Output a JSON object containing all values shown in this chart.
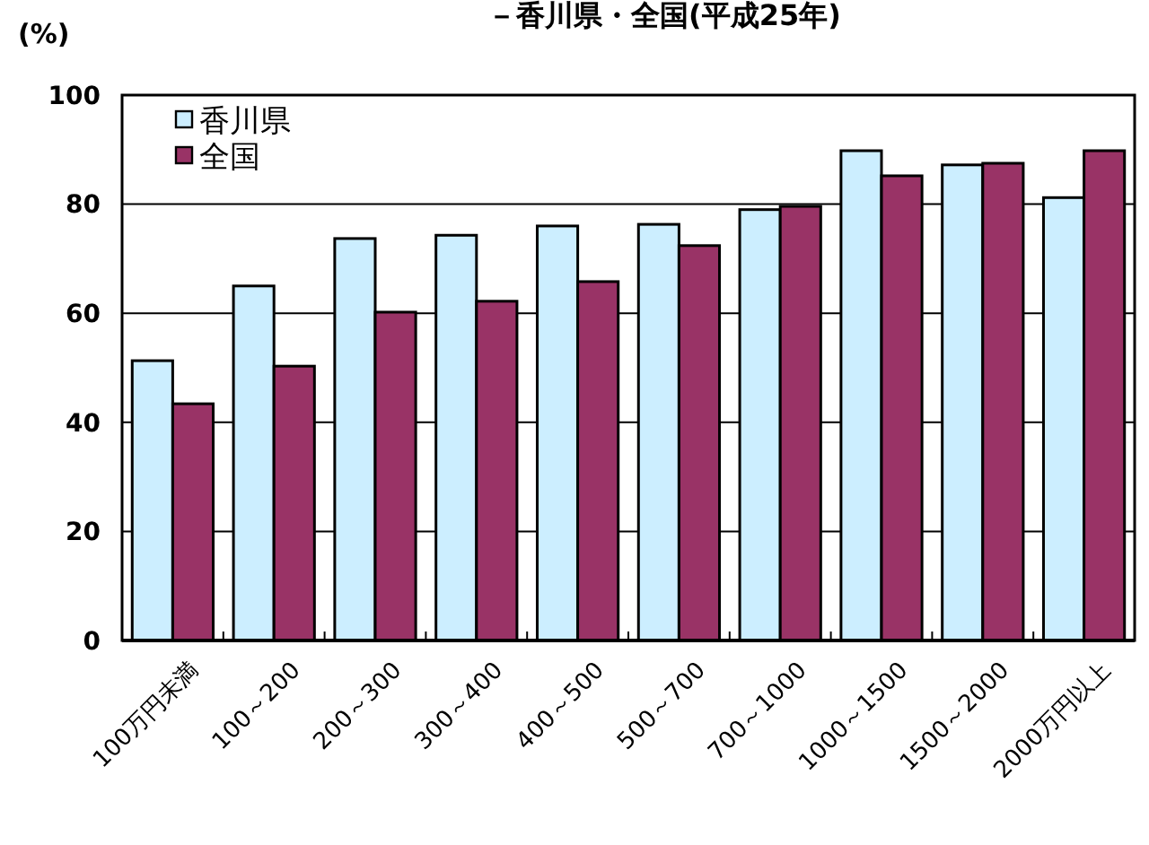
{
  "chart_data": {
    "type": "bar",
    "title": "－香川県・全国(平成25年)",
    "ylabel": "(%)",
    "categories": [
      "100万円未満",
      "100～200",
      "200～300",
      "300～400",
      "400～500",
      "500～700",
      "700～1000",
      "1000～1500",
      "1500～2000",
      "2000万円以上"
    ],
    "series": [
      {
        "name": "香川県",
        "color": "#cceeff",
        "values": [
          51.3,
          65,
          73.7,
          74.3,
          76,
          76.3,
          79,
          89.8,
          87.2,
          81.2
        ]
      },
      {
        "name": "全国",
        "color": "#993366",
        "values": [
          43.4,
          50.3,
          60.2,
          62.2,
          65.8,
          72.4,
          79.6,
          85.2,
          87.5,
          89.8
        ]
      }
    ],
    "ylim": [
      0,
      100
    ],
    "yticks": [
      0,
      20,
      40,
      60,
      80,
      100
    ],
    "grid": "y",
    "legend": "top left"
  }
}
